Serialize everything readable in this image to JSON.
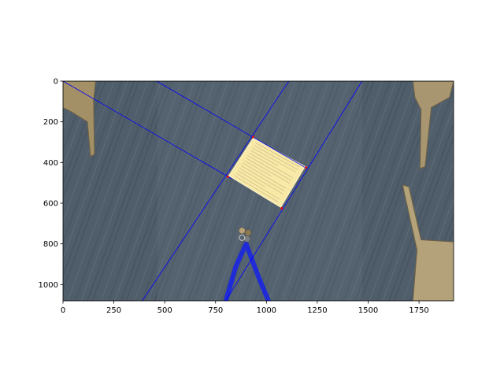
{
  "chart_data": {
    "type": "image",
    "title": "",
    "xlabel": "",
    "ylabel": "",
    "xlim": [
      0,
      1920
    ],
    "ylim": [
      1080,
      0
    ],
    "grid": false,
    "image_size": [
      1920,
      1080
    ],
    "xticks": [
      0,
      250,
      500,
      750,
      1000,
      1250,
      1500,
      1750
    ],
    "yticks": [
      0,
      200,
      400,
      600,
      800,
      1000
    ],
    "xtick_labels": [
      "0",
      "250",
      "500",
      "750",
      "1000",
      "1250",
      "1500",
      "1750"
    ],
    "ytick_labels": [
      "0",
      "200",
      "400",
      "600",
      "800",
      "1000"
    ],
    "line_color": "#0000ff",
    "point_color": "#ff0000",
    "image_content": "overhead photo of a grey wood-grain floor with a yellow sheet of paper, a blue lanyard and keys, and chair legs at the left and right edges",
    "lines": [
      {
        "from": [
          0,
          0
        ],
        "to": [
          830,
          480
        ]
      },
      {
        "from": [
          460,
          0
        ],
        "to": [
          1200,
          430
        ]
      },
      {
        "from": [
          1110,
          0
        ],
        "to": [
          390,
          1080
        ]
      },
      {
        "from": [
          1470,
          0
        ],
        "to": [
          800,
          1080
        ]
      }
    ],
    "points": [
      {
        "x": 935,
        "y": 275
      },
      {
        "x": 1195,
        "y": 425
      },
      {
        "x": 1075,
        "y": 625
      },
      {
        "x": 810,
        "y": 470
      }
    ],
    "paper_corners": [
      [
        935,
        280
      ],
      [
        1190,
        420
      ],
      [
        1070,
        620
      ],
      [
        815,
        465
      ]
    ]
  }
}
